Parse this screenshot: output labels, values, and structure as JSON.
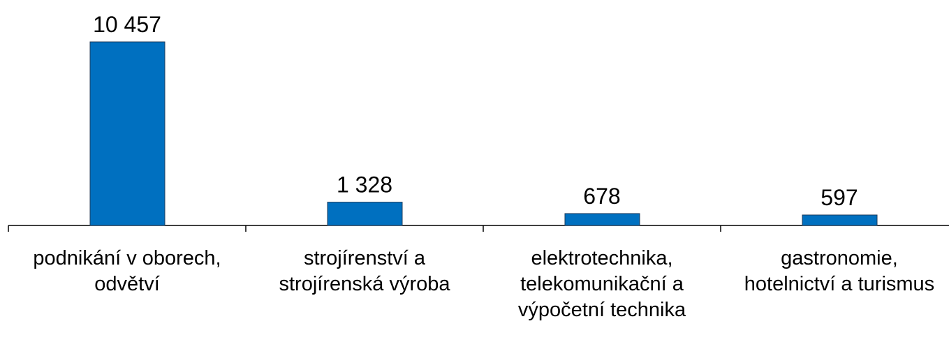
{
  "chart_data": {
    "type": "bar",
    "categories": [
      "podnikání v oborech, odvětví",
      "strojírenství a strojírenská výroba",
      "elektrotechnika, telekomunikační a výpočetní technika",
      "gastronomie, hotelnictví a turismus"
    ],
    "values": [
      10457,
      1328,
      678,
      597
    ],
    "value_labels": [
      "10 457",
      "1 328",
      "678",
      "597"
    ],
    "color": "#0070c0"
  }
}
